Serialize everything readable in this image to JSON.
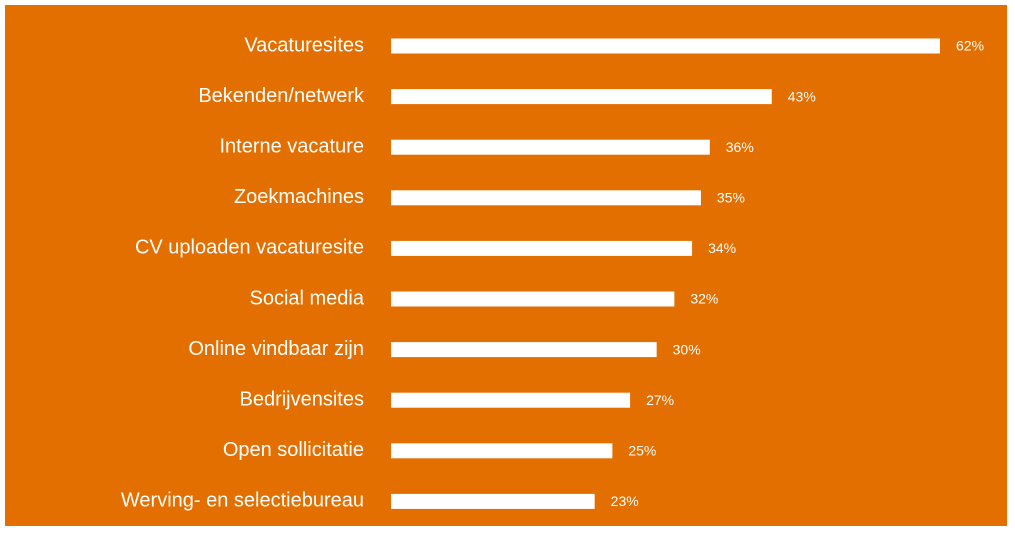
{
  "chart_data": {
    "type": "bar",
    "orientation": "horizontal",
    "categories": [
      "Vacaturesites",
      "Bekenden/netwerk",
      "Interne vacature",
      "Zoekmachines",
      "CV uploaden vacaturesite",
      "Social media",
      "Online vindbaar zijn",
      "Bedrijvensites",
      "Open sollicitatie",
      "Werving- en selectiebureau"
    ],
    "values": [
      62,
      43,
      36,
      35,
      34,
      32,
      30,
      27,
      25,
      23
    ],
    "value_labels": [
      "62%",
      "43%",
      "36%",
      "35%",
      "34%",
      "32%",
      "30%",
      "27%",
      "25%",
      "23%"
    ],
    "color": "#ffffff",
    "background": "#e36f00"
  }
}
